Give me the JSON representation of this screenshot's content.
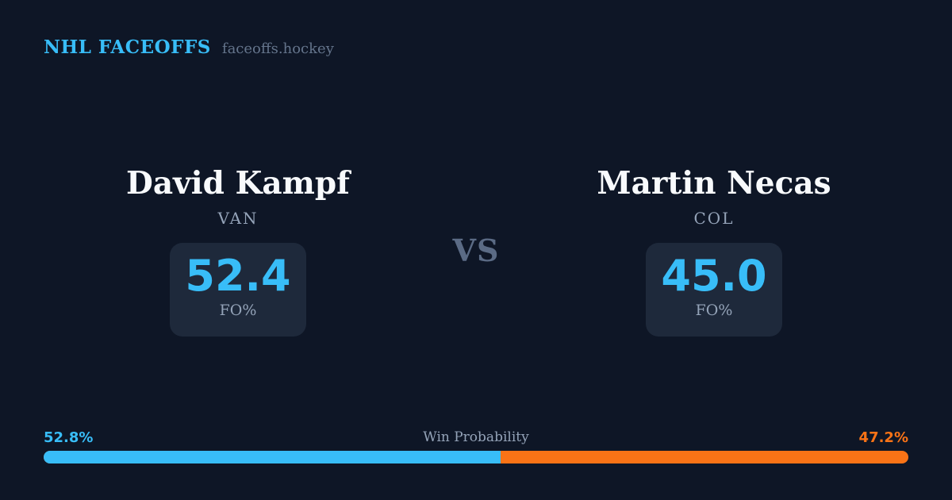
{
  "header": {
    "brand": "NHL FACEOFFS",
    "site": "faceoffs.hockey"
  },
  "matchup": {
    "vs_label": "VS",
    "players": [
      {
        "name": "David Kampf",
        "team": "VAN",
        "stat_value": "52.4",
        "stat_label": "FO%"
      },
      {
        "name": "Martin Necas",
        "team": "COL",
        "stat_value": "45.0",
        "stat_label": "FO%"
      }
    ]
  },
  "win_probability": {
    "label": "Win Probability",
    "left_pct_text": "52.8%",
    "right_pct_text": "47.2%",
    "left_value": 52.8,
    "right_value": 47.2
  },
  "colors": {
    "background": "#0e1626",
    "card": "#1e293b",
    "accent_blue": "#38bdf8",
    "accent_orange": "#f97316",
    "text_primary": "#f8fafc",
    "text_muted": "#94a3b8",
    "text_dim": "#64748b"
  }
}
